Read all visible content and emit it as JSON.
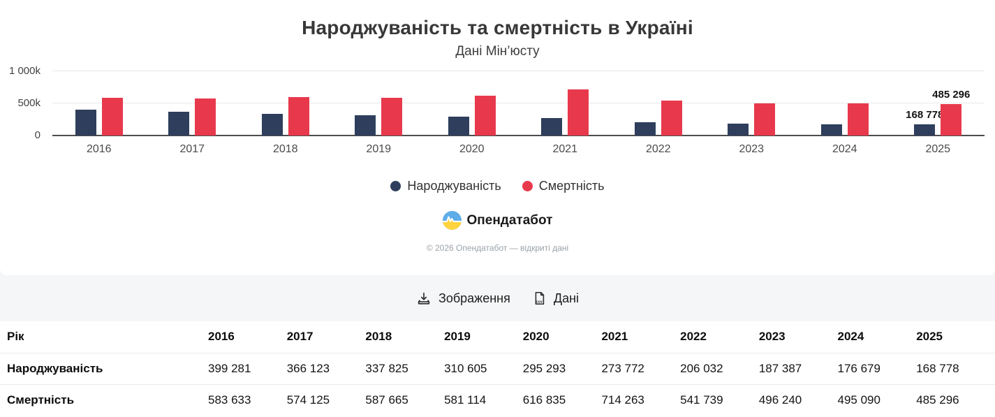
{
  "chart_data": {
    "type": "bar",
    "title": "Народжуваність та смертність в Україні",
    "subtitle": "Дані Мін’юсту",
    "categories": [
      "2016",
      "2017",
      "2018",
      "2019",
      "2020",
      "2021",
      "2022",
      "2023",
      "2024",
      "2025"
    ],
    "series": [
      {
        "name": "Народжуваність",
        "color": "#2f3e5c",
        "values": [
          399281,
          366123,
          337825,
          310605,
          295293,
          273772,
          206032,
          187387,
          176679,
          168778
        ]
      },
      {
        "name": "Смертність",
        "color": "#e8394c",
        "values": [
          583633,
          574125,
          587665,
          581114,
          616835,
          714263,
          541739,
          496240,
          495090,
          485296
        ]
      }
    ],
    "ylim": [
      0,
      1000000
    ],
    "yticks": [
      "1 000k",
      "500k",
      "0"
    ],
    "grid": true,
    "legend_position": "bottom",
    "annotations": {
      "last_birth_label": "168 778",
      "last_death_label": "485 296"
    }
  },
  "branding": {
    "logo_text": "Опендатабот",
    "logo_colors": {
      "top": "#5eade9",
      "bottom": "#ffd340"
    },
    "copyright": "© 2026 Опендатабот — відкриті дані"
  },
  "actions": {
    "image_button": "Зображення",
    "data_button": "Дані"
  },
  "table": {
    "row_header": "Рік",
    "years": [
      "2016",
      "2017",
      "2018",
      "2019",
      "2020",
      "2021",
      "2022",
      "2023",
      "2024",
      "2025"
    ],
    "rows": [
      {
        "label": "Народжуваність",
        "values": [
          "399 281",
          "366 123",
          "337 825",
          "310 605",
          "295 293",
          "273 772",
          "206 032",
          "187 387",
          "176 679",
          "168 778"
        ]
      },
      {
        "label": "Смертність",
        "values": [
          "583 633",
          "574 125",
          "587 665",
          "581 114",
          "616 835",
          "714 263",
          "541 739",
          "496 240",
          "495 090",
          "485 296"
        ]
      }
    ]
  }
}
